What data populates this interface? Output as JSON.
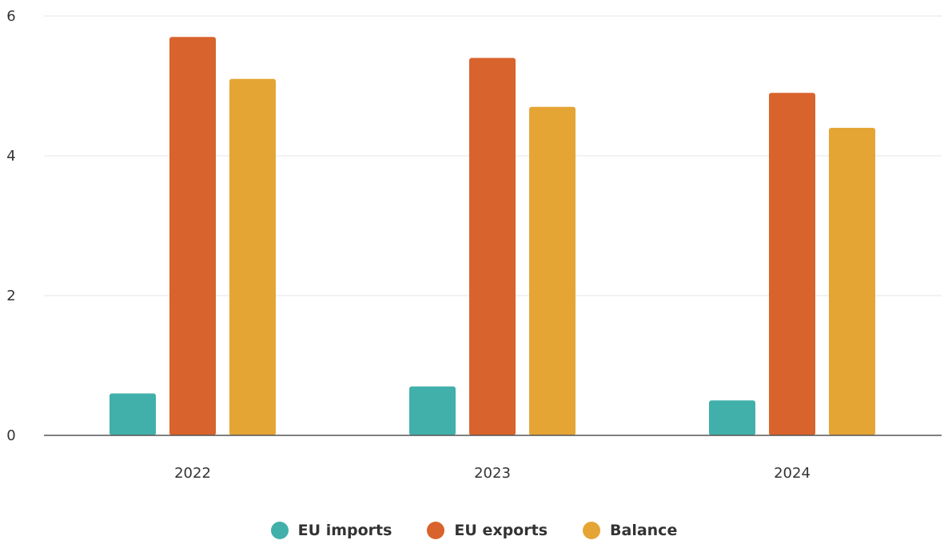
{
  "chart_data": {
    "type": "bar",
    "categories": [
      "2022",
      "2023",
      "2024"
    ],
    "series": [
      {
        "name": "EU imports",
        "values": [
          0.6,
          0.7,
          0.5
        ],
        "color": "#41b0aa"
      },
      {
        "name": "EU exports",
        "values": [
          5.7,
          5.4,
          4.9
        ],
        "color": "#d9632c"
      },
      {
        "name": "Balance",
        "values": [
          5.1,
          4.7,
          4.4
        ],
        "color": "#e5a535"
      }
    ],
    "ylim": [
      0,
      6
    ],
    "yticks": [
      "0",
      "2",
      "4",
      "6"
    ],
    "grid": true,
    "legend_position": "bottom"
  }
}
